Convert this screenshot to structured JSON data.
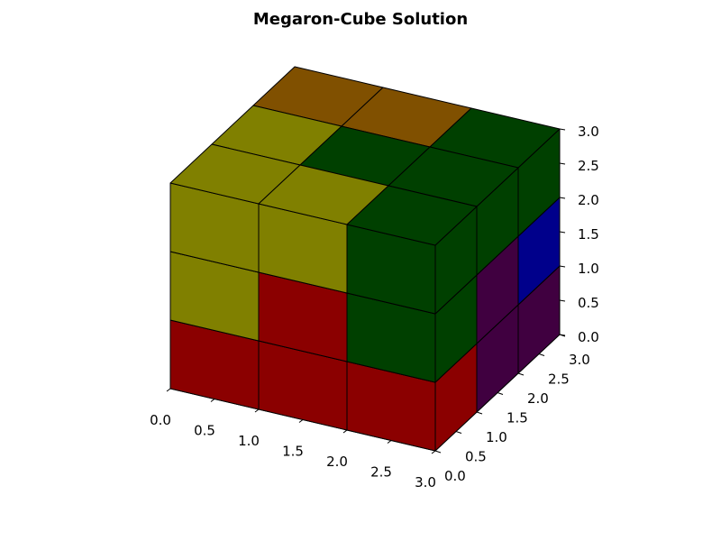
{
  "chart_data": {
    "type": "3d-voxel",
    "title": "Megaron-Cube Solution",
    "xlabel": "",
    "ylabel": "",
    "zlabel": "",
    "xlim": [
      0,
      3
    ],
    "ylim": [
      0,
      3
    ],
    "zlim": [
      0,
      3
    ],
    "x_ticks": [
      "0.0",
      "0.5",
      "1.0",
      "1.5",
      "2.0",
      "2.5",
      "3.0"
    ],
    "y_ticks": [
      "0.0",
      "0.5",
      "1.0",
      "1.5",
      "2.0",
      "2.5",
      "3.0"
    ],
    "z_ticks": [
      "0.0",
      "0.5",
      "1.0",
      "1.5",
      "2.0",
      "2.5",
      "3.0"
    ],
    "colors": {
      "olive": "#808000",
      "red": "#8b0000",
      "green": "#004000",
      "orange": "#805000",
      "purple": "#400040",
      "blue": "#00008b"
    },
    "voxels": [
      {
        "x": 0,
        "y": 0,
        "z": 0,
        "color": "red"
      },
      {
        "x": 1,
        "y": 0,
        "z": 0,
        "color": "red"
      },
      {
        "x": 2,
        "y": 0,
        "z": 0,
        "color": "red"
      },
      {
        "x": 0,
        "y": 0,
        "z": 1,
        "color": "olive"
      },
      {
        "x": 1,
        "y": 0,
        "z": 1,
        "color": "red"
      },
      {
        "x": 2,
        "y": 0,
        "z": 1,
        "color": "green"
      },
      {
        "x": 0,
        "y": 0,
        "z": 2,
        "color": "olive"
      },
      {
        "x": 1,
        "y": 0,
        "z": 2,
        "color": "olive"
      },
      {
        "x": 2,
        "y": 0,
        "z": 2,
        "color": "green"
      },
      {
        "x": 2,
        "y": 1,
        "z": 0,
        "color": "purple"
      },
      {
        "x": 2,
        "y": 2,
        "z": 0,
        "color": "purple"
      },
      {
        "x": 2,
        "y": 1,
        "z": 1,
        "color": "purple"
      },
      {
        "x": 2,
        "y": 2,
        "z": 1,
        "color": "blue"
      },
      {
        "x": 2,
        "y": 1,
        "z": 2,
        "color": "green"
      },
      {
        "x": 2,
        "y": 2,
        "z": 2,
        "color": "green"
      },
      {
        "x": 0,
        "y": 1,
        "z": 2,
        "color": "olive"
      },
      {
        "x": 0,
        "y": 2,
        "z": 2,
        "color": "orange"
      },
      {
        "x": 1,
        "y": 1,
        "z": 2,
        "color": "green"
      },
      {
        "x": 1,
        "y": 2,
        "z": 2,
        "color": "orange"
      }
    ]
  }
}
